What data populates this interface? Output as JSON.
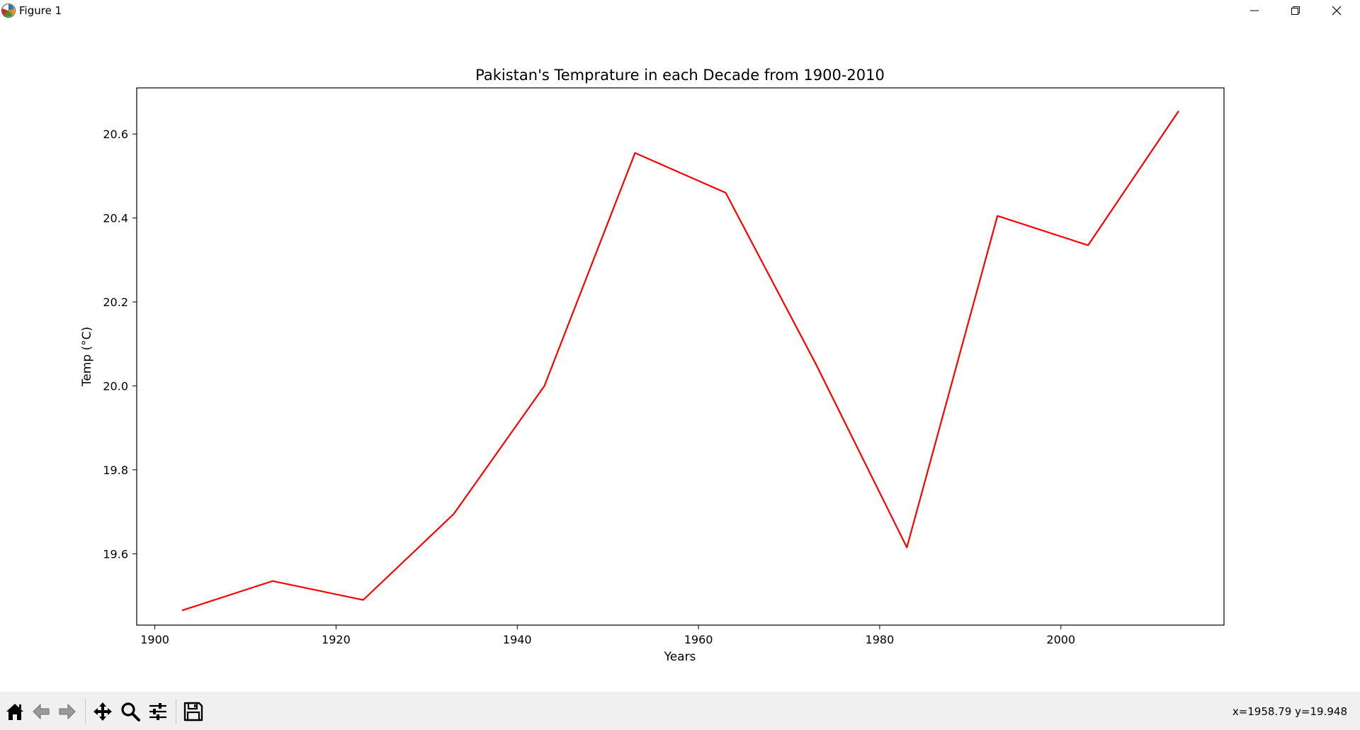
{
  "window": {
    "title": "Figure 1",
    "icons": {
      "app": "matplotlib-icon",
      "minimize": "minimize-icon",
      "restore": "restore-icon",
      "close": "close-icon"
    }
  },
  "chart_data": {
    "type": "line",
    "title": "Pakistan's Temprature in each Decade from 1900-2010",
    "xlabel": "Years",
    "ylabel": "Temp (°C)",
    "xlim": [
      1898,
      2018
    ],
    "ylim": [
      19.43,
      20.71
    ],
    "xticks": [
      1900,
      1920,
      1940,
      1960,
      1980,
      2000
    ],
    "yticks": [
      19.6,
      19.8,
      20.0,
      20.2,
      20.4,
      20.6
    ],
    "grid": false,
    "legend": "none",
    "series": [
      {
        "color": "#ff0000",
        "x": [
          1903,
          1913,
          1923,
          1933,
          1943,
          1953,
          1963,
          1973,
          1983,
          1993,
          2003,
          2013
        ],
        "y": [
          19.465,
          19.535,
          19.49,
          19.695,
          20.0,
          20.555,
          20.46,
          20.05,
          19.615,
          20.405,
          20.335,
          20.655
        ]
      }
    ]
  },
  "toolbar": {
    "buttons": [
      {
        "name": "home-icon",
        "tooltip": "Reset original view"
      },
      {
        "name": "back-arrow-icon",
        "tooltip": "Back"
      },
      {
        "name": "forward-arrow-icon",
        "tooltip": "Forward"
      },
      {
        "name": "pan-icon",
        "tooltip": "Pan"
      },
      {
        "name": "zoom-icon",
        "tooltip": "Zoom"
      },
      {
        "name": "configure-subplots-icon",
        "tooltip": "Configure subplots"
      },
      {
        "name": "save-icon",
        "tooltip": "Save"
      }
    ],
    "coordinates": "x=1958.79 y=19.948"
  }
}
